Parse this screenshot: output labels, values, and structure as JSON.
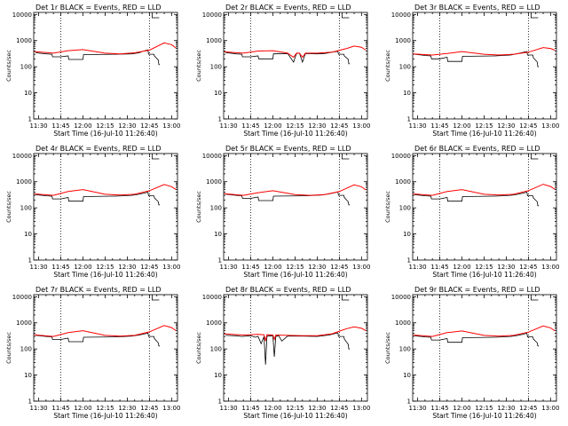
{
  "colors": {
    "events": "#000000",
    "lld": "#ff0000",
    "background": "#ffffff"
  },
  "chart_data": [
    {
      "type": "line",
      "title": "Det 1r BLACK = Events, RED = LLD",
      "xlabel": "Start Time (16-Jul-10 11:26:40)",
      "ylabel": "Counts/sec",
      "x_ticks": [
        "11:30",
        "11:45",
        "12:00",
        "12:15",
        "12:30",
        "12:45",
        "13:00"
      ],
      "y_ticks": [
        "1",
        "10",
        "100",
        "1000",
        "10000"
      ],
      "y_scale": "log",
      "xlim_minutes": [
        -3.33,
        94
      ],
      "ylim": [
        1,
        12000
      ],
      "vlines_minutes": [
        15,
        75
      ],
      "series": [
        {
          "name": "Events",
          "color": "#000000",
          "x": [
            -2,
            5,
            9,
            9.4,
            14,
            15,
            20,
            20.4,
            30,
            30.4,
            52,
            52.4,
            63,
            68,
            70,
            72,
            73,
            74,
            74.4,
            78,
            78.4,
            81,
            81.4,
            82
          ],
          "y": [
            340,
            310,
            300,
            240,
            240,
            240,
            260,
            190,
            190,
            290,
            300,
            300,
            310,
            340,
            380,
            410,
            430,
            440,
            300,
            300,
            260,
            180,
            120,
            120
          ]
        },
        {
          "name": "LLD",
          "color": "#ff0000",
          "x": [
            -3,
            10,
            20,
            30,
            45,
            55,
            65,
            75,
            85,
            90,
            93
          ],
          "y": [
            380,
            330,
            410,
            450,
            330,
            310,
            340,
            430,
            820,
            700,
            520
          ]
        }
      ]
    },
    {
      "type": "line",
      "title": "Det 2r BLACK = Events, RED = LLD",
      "xlabel": "Start Time (16-Jul-10 11:26:40)",
      "ylabel": "Counts/sec",
      "x_ticks": [
        "11:30",
        "11:45",
        "12:00",
        "12:15",
        "12:30",
        "12:45",
        "13:00"
      ],
      "y_ticks": [
        "1",
        "10",
        "100",
        "1000",
        "10000"
      ],
      "y_scale": "log",
      "xlim_minutes": [
        -3.33,
        94
      ],
      "ylim": [
        1,
        12000
      ],
      "vlines_minutes": [
        15,
        75
      ],
      "series": [
        {
          "name": "Events",
          "color": "#000000",
          "x": [
            -2,
            5,
            9,
            9.4,
            14,
            15,
            20,
            20.4,
            30,
            30.4,
            40,
            44,
            46,
            48,
            50,
            52,
            60,
            65,
            70,
            73,
            74,
            74.4,
            78,
            78.4,
            81,
            81.4,
            82
          ],
          "y": [
            350,
            310,
            300,
            240,
            240,
            240,
            260,
            200,
            200,
            310,
            320,
            150,
            320,
            330,
            150,
            320,
            310,
            320,
            360,
            380,
            390,
            300,
            300,
            260,
            190,
            130,
            130
          ]
        },
        {
          "name": "LLD",
          "color": "#ff0000",
          "x": [
            -3,
            10,
            20,
            30,
            40,
            44,
            46,
            48,
            50,
            52,
            60,
            70,
            80,
            85,
            90,
            93
          ],
          "y": [
            370,
            330,
            400,
            410,
            330,
            230,
            330,
            330,
            230,
            330,
            330,
            360,
            500,
            620,
            560,
            430
          ]
        }
      ]
    },
    {
      "type": "line",
      "title": "Det 3r BLACK = Events, RED = LLD",
      "xlabel": "Start Time (16-Jul-10 11:26:40)",
      "ylabel": "Counts/sec",
      "x_ticks": [
        "11:30",
        "11:45",
        "12:00",
        "12:15",
        "12:30",
        "12:45",
        "13:00"
      ],
      "y_ticks": [
        "1",
        "10",
        "100",
        "1000",
        "10000"
      ],
      "y_scale": "log",
      "xlim_minutes": [
        -3.33,
        94
      ],
      "ylim": [
        1,
        12000
      ],
      "vlines_minutes": [
        15,
        75
      ],
      "series": [
        {
          "name": "Events",
          "color": "#000000",
          "x": [
            -2,
            5,
            9,
            9.4,
            14,
            15,
            20,
            20.4,
            30,
            30.4,
            52,
            52.4,
            63,
            68,
            72,
            74,
            74.4,
            78,
            78.4,
            81,
            81.4,
            82
          ],
          "y": [
            300,
            270,
            260,
            200,
            200,
            200,
            230,
            160,
            160,
            250,
            260,
            260,
            280,
            320,
            360,
            380,
            280,
            280,
            220,
            150,
            100,
            100
          ]
        },
        {
          "name": "LLD",
          "color": "#ff0000",
          "x": [
            -3,
            10,
            20,
            30,
            45,
            55,
            65,
            75,
            85,
            90,
            93
          ],
          "y": [
            310,
            280,
            320,
            380,
            300,
            280,
            300,
            360,
            540,
            500,
            430
          ]
        }
      ]
    },
    {
      "type": "line",
      "title": "Det 4r BLACK = Events, RED = LLD",
      "xlabel": "Start Time (16-Jul-10 11:26:40)",
      "ylabel": "Counts/sec",
      "x_ticks": [
        "11:30",
        "11:45",
        "12:00",
        "12:15",
        "12:30",
        "12:45",
        "13:00"
      ],
      "y_ticks": [
        "1",
        "10",
        "100",
        "1000",
        "10000"
      ],
      "y_scale": "log",
      "xlim_minutes": [
        -3.33,
        94
      ],
      "ylim": [
        1,
        12000
      ],
      "vlines_minutes": [
        15,
        75
      ],
      "series": [
        {
          "name": "Events",
          "color": "#000000",
          "x": [
            -2,
            5,
            9,
            9.4,
            14,
            15,
            20,
            20.4,
            30,
            30.4,
            52,
            52.4,
            63,
            68,
            72,
            74,
            74.4,
            78,
            78.4,
            81,
            81.4,
            82
          ],
          "y": [
            320,
            290,
            280,
            220,
            220,
            220,
            250,
            180,
            180,
            270,
            280,
            280,
            300,
            330,
            370,
            400,
            290,
            290,
            240,
            170,
            130,
            130
          ]
        },
        {
          "name": "LLD",
          "color": "#ff0000",
          "x": [
            -3,
            10,
            20,
            30,
            45,
            55,
            65,
            75,
            85,
            90,
            93
          ],
          "y": [
            340,
            300,
            420,
            500,
            330,
            310,
            330,
            450,
            780,
            650,
            500
          ]
        }
      ]
    },
    {
      "type": "line",
      "title": "Det 5r BLACK = Events, RED = LLD",
      "xlabel": "Start Time (16-Jul-10 11:26:40)",
      "ylabel": "Counts/sec",
      "x_ticks": [
        "11:30",
        "11:45",
        "12:00",
        "12:15",
        "12:30",
        "12:45",
        "13:00"
      ],
      "y_ticks": [
        "1",
        "10",
        "100",
        "1000",
        "10000"
      ],
      "y_scale": "log",
      "xlim_minutes": [
        -3.33,
        94
      ],
      "ylim": [
        1,
        12000
      ],
      "vlines_minutes": [
        15,
        75
      ],
      "series": [
        {
          "name": "Events",
          "color": "#000000",
          "x": [
            -2,
            5,
            9,
            9.4,
            14,
            15,
            20,
            20.4,
            30,
            30.4,
            52,
            52.4,
            63,
            68,
            72,
            74,
            74.4,
            78,
            78.4,
            81,
            81.4,
            82
          ],
          "y": [
            330,
            300,
            290,
            230,
            230,
            230,
            260,
            190,
            190,
            280,
            290,
            290,
            310,
            340,
            380,
            410,
            300,
            300,
            250,
            170,
            130,
            130
          ]
        },
        {
          "name": "LLD",
          "color": "#ff0000",
          "x": [
            -3,
            10,
            20,
            30,
            45,
            55,
            65,
            75,
            85,
            90,
            93
          ],
          "y": [
            350,
            300,
            380,
            450,
            320,
            300,
            320,
            420,
            760,
            640,
            480
          ]
        }
      ]
    },
    {
      "type": "line",
      "title": "Det 6r BLACK = Events, RED = LLD",
      "xlabel": "Start Time (16-Jul-10 11:26:40)",
      "ylabel": "Counts/sec",
      "x_ticks": [
        "11:30",
        "11:45",
        "12:00",
        "12:15",
        "12:30",
        "12:45",
        "13:00"
      ],
      "y_ticks": [
        "1",
        "10",
        "100",
        "1000",
        "10000"
      ],
      "y_scale": "log",
      "xlim_minutes": [
        -3.33,
        94
      ],
      "ylim": [
        1,
        12000
      ],
      "vlines_minutes": [
        15,
        75
      ],
      "series": [
        {
          "name": "Events",
          "color": "#000000",
          "x": [
            -2,
            5,
            9,
            9.4,
            14,
            15,
            20,
            20.4,
            30,
            30.4,
            52,
            52.4,
            63,
            68,
            72,
            74,
            74.4,
            78,
            78.4,
            81,
            81.4,
            82
          ],
          "y": [
            320,
            290,
            280,
            220,
            220,
            220,
            250,
            180,
            180,
            270,
            280,
            280,
            300,
            330,
            370,
            400,
            290,
            290,
            240,
            170,
            120,
            120
          ]
        },
        {
          "name": "LLD",
          "color": "#ff0000",
          "x": [
            -3,
            10,
            20,
            30,
            45,
            55,
            65,
            75,
            85,
            90,
            93
          ],
          "y": [
            340,
            300,
            420,
            500,
            330,
            310,
            330,
            450,
            800,
            660,
            510
          ]
        }
      ]
    },
    {
      "type": "line",
      "title": "Det 7r BLACK = Events, RED = LLD",
      "xlabel": "Start Time (16-Jul-10 11:26:40)",
      "ylabel": "Counts/sec",
      "x_ticks": [
        "11:30",
        "11:45",
        "12:00",
        "12:15",
        "12:30",
        "12:45",
        "13:00"
      ],
      "y_ticks": [
        "1",
        "10",
        "100",
        "1000",
        "10000"
      ],
      "y_scale": "log",
      "xlim_minutes": [
        -3.33,
        94
      ],
      "ylim": [
        1,
        12000
      ],
      "vlines_minutes": [
        15,
        75
      ],
      "series": [
        {
          "name": "Events",
          "color": "#000000",
          "x": [
            -2,
            5,
            9,
            9.4,
            14,
            15,
            20,
            20.4,
            30,
            30.4,
            52,
            52.4,
            63,
            68,
            72,
            74,
            74.4,
            78,
            78.4,
            81,
            81.4,
            82
          ],
          "y": [
            330,
            300,
            290,
            230,
            230,
            230,
            260,
            190,
            190,
            280,
            290,
            290,
            310,
            340,
            380,
            410,
            300,
            300,
            250,
            170,
            130,
            130
          ]
        },
        {
          "name": "LLD",
          "color": "#ff0000",
          "x": [
            -3,
            10,
            20,
            30,
            45,
            55,
            65,
            75,
            85,
            90,
            93
          ],
          "y": [
            350,
            300,
            420,
            500,
            330,
            310,
            330,
            450,
            790,
            660,
            500
          ]
        }
      ]
    },
    {
      "type": "line",
      "title": "Det 8r BLACK = Events, RED = LLD",
      "xlabel": "Start Time (16-Jul-10 11:26:40)",
      "ylabel": "Counts/sec",
      "x_ticks": [
        "11:30",
        "11:45",
        "12:00",
        "12:15",
        "12:30",
        "12:45",
        "13:00"
      ],
      "y_ticks": [
        "1",
        "10",
        "100",
        "1000",
        "10000"
      ],
      "y_scale": "log",
      "xlim_minutes": [
        -3.33,
        94
      ],
      "ylim": [
        1,
        12000
      ],
      "vlines_minutes": [
        15,
        75
      ],
      "series": [
        {
          "name": "Events",
          "color": "#000000",
          "x": [
            -2,
            5,
            9,
            12,
            15,
            18,
            20,
            22,
            24,
            25,
            26,
            28,
            30,
            31,
            32,
            33,
            34,
            36,
            40,
            50,
            60,
            68,
            73,
            74,
            74.4,
            78,
            78.4,
            81,
            81.4,
            82
          ],
          "y": [
            330,
            320,
            300,
            310,
            320,
            280,
            300,
            160,
            300,
            25,
            300,
            320,
            310,
            50,
            300,
            310,
            320,
            200,
            310,
            310,
            300,
            340,
            400,
            410,
            300,
            300,
            240,
            150,
            100,
            100
          ]
        },
        {
          "name": "LLD",
          "color": "#ff0000",
          "x": [
            -3,
            10,
            20,
            24,
            25,
            26,
            30,
            31,
            32,
            40,
            50,
            60,
            70,
            80,
            85,
            90,
            93
          ],
          "y": [
            380,
            340,
            360,
            350,
            200,
            350,
            340,
            230,
            340,
            330,
            320,
            320,
            380,
            600,
            700,
            620,
            500
          ]
        }
      ]
    },
    {
      "type": "line",
      "title": "Det 9r BLACK = Events, RED = LLD",
      "xlabel": "Start Time (16-Jul-10 11:26:40)",
      "ylabel": "Counts/sec",
      "x_ticks": [
        "11:30",
        "11:45",
        "12:00",
        "12:15",
        "12:30",
        "12:45",
        "13:00"
      ],
      "y_ticks": [
        "1",
        "10",
        "100",
        "1000",
        "10000"
      ],
      "y_scale": "log",
      "xlim_minutes": [
        -3.33,
        94
      ],
      "ylim": [
        1,
        12000
      ],
      "vlines_minutes": [
        15,
        75
      ],
      "series": [
        {
          "name": "Events",
          "color": "#000000",
          "x": [
            -2,
            5,
            9,
            9.4,
            14,
            15,
            20,
            20.4,
            30,
            30.4,
            52,
            52.4,
            63,
            68,
            72,
            74,
            74.4,
            78,
            78.4,
            81,
            81.4,
            82
          ],
          "y": [
            320,
            290,
            280,
            220,
            220,
            220,
            250,
            180,
            180,
            270,
            280,
            280,
            300,
            330,
            370,
            400,
            290,
            290,
            240,
            170,
            130,
            130
          ]
        },
        {
          "name": "LLD",
          "color": "#ff0000",
          "x": [
            -3,
            10,
            20,
            30,
            45,
            55,
            65,
            75,
            85,
            90,
            93
          ],
          "y": [
            340,
            300,
            420,
            490,
            330,
            310,
            330,
            440,
            760,
            640,
            490
          ]
        }
      ]
    }
  ]
}
